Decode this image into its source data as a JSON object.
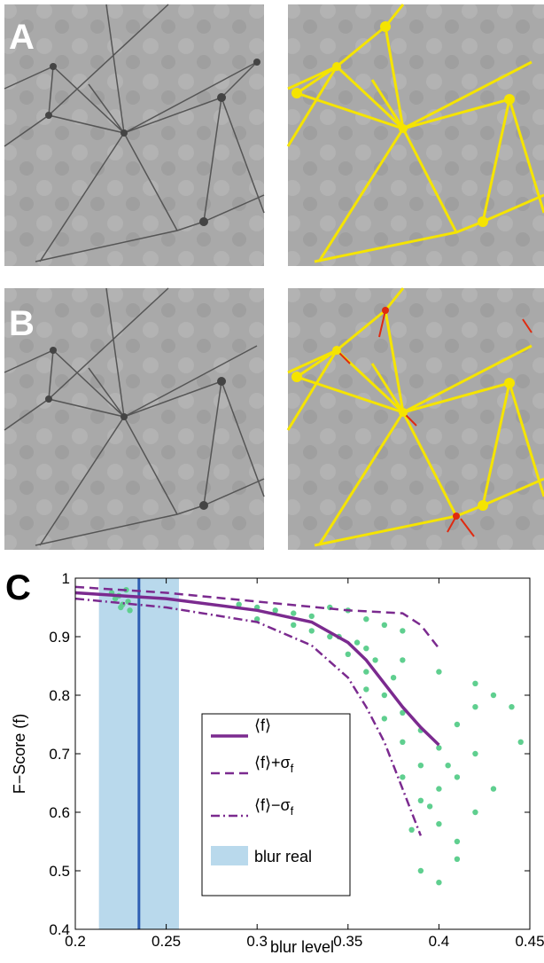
{
  "panels": [
    {
      "label": "A"
    },
    {
      "label": "B"
    }
  ],
  "chart_data": {
    "type": "scatter-line",
    "panel_label": "C",
    "x_label": "blur level",
    "y_label": "F−Score (f)",
    "xlim": [
      0.2,
      0.45
    ],
    "ylim": [
      0.4,
      1
    ],
    "xticks": [
      0.2,
      0.25,
      0.3,
      0.35,
      0.4,
      0.45
    ],
    "yticks": [
      0.4,
      0.5,
      0.6,
      0.7,
      0.8,
      0.9,
      1
    ],
    "scatter": {
      "color": "#5fcf8f",
      "x": [
        0.22,
        0.222,
        0.225,
        0.228,
        0.23,
        0.224,
        0.226,
        0.229,
        0.29,
        0.3,
        0.31,
        0.32,
        0.33,
        0.34,
        0.35,
        0.36,
        0.37,
        0.38,
        0.3,
        0.32,
        0.34,
        0.36,
        0.38,
        0.4,
        0.42,
        0.44,
        0.35,
        0.36,
        0.37,
        0.38,
        0.39,
        0.4,
        0.41,
        0.42,
        0.43,
        0.36,
        0.37,
        0.38,
        0.39,
        0.4,
        0.41,
        0.42,
        0.38,
        0.39,
        0.4,
        0.41,
        0.42,
        0.43,
        0.39,
        0.4,
        0.41,
        0.385,
        0.395,
        0.405,
        0.33,
        0.345,
        0.355,
        0.365,
        0.375,
        0.445
      ],
      "y": [
        0.975,
        0.965,
        0.95,
        0.98,
        0.945,
        0.97,
        0.955,
        0.96,
        0.955,
        0.95,
        0.945,
        0.94,
        0.935,
        0.95,
        0.945,
        0.93,
        0.92,
        0.91,
        0.93,
        0.92,
        0.9,
        0.88,
        0.86,
        0.84,
        0.82,
        0.78,
        0.87,
        0.84,
        0.8,
        0.77,
        0.74,
        0.71,
        0.75,
        0.78,
        0.8,
        0.81,
        0.76,
        0.72,
        0.68,
        0.64,
        0.66,
        0.7,
        0.66,
        0.62,
        0.58,
        0.55,
        0.6,
        0.64,
        0.5,
        0.48,
        0.52,
        0.57,
        0.61,
        0.68,
        0.91,
        0.9,
        0.89,
        0.86,
        0.83,
        0.72
      ]
    },
    "series": [
      {
        "name": "⟨f⟩",
        "color": "#7b2a8f",
        "dash": "solid",
        "x": [
          0.2,
          0.25,
          0.3,
          0.33,
          0.35,
          0.36,
          0.37,
          0.38,
          0.39,
          0.4
        ],
        "values": [
          0.975,
          0.965,
          0.945,
          0.925,
          0.89,
          0.86,
          0.82,
          0.78,
          0.745,
          0.715
        ]
      },
      {
        "name": "⟨f⟩+σ",
        "name_sub": "f",
        "color": "#7b2a8f",
        "dash": "dashed",
        "x": [
          0.2,
          0.25,
          0.3,
          0.35,
          0.38,
          0.39,
          0.4
        ],
        "values": [
          0.985,
          0.975,
          0.96,
          0.945,
          0.94,
          0.92,
          0.88
        ]
      },
      {
        "name": "⟨f⟩−σ",
        "name_sub": "f",
        "color": "#7b2a8f",
        "dash": "dashdot",
        "x": [
          0.2,
          0.25,
          0.3,
          0.33,
          0.35,
          0.36,
          0.37,
          0.38,
          0.39
        ],
        "values": [
          0.965,
          0.95,
          0.925,
          0.885,
          0.83,
          0.78,
          0.72,
          0.64,
          0.56
        ]
      }
    ],
    "reference": {
      "name": "blur real",
      "value": 0.235,
      "band": [
        0.213,
        0.257
      ],
      "line_color": "#2f5fb3",
      "band_color": "#b9d9ec"
    }
  }
}
